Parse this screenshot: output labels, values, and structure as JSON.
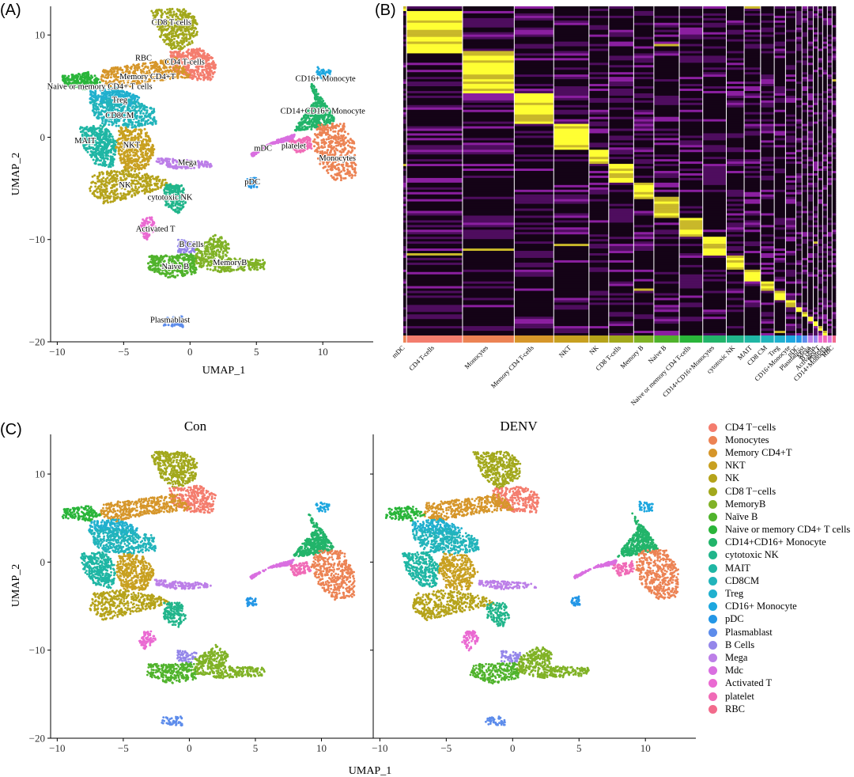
{
  "panels": {
    "a": "(A)",
    "b": "(B)",
    "c": "(C)"
  },
  "colors": {
    "CD4 T-cells": "#F47D6E",
    "Monocytes": "#EC8354",
    "Memory CD4+T": "#D6962A",
    "NKT": "#C8A020",
    "NK": "#B5A31A",
    "CD8 T-cells": "#A2A81C",
    "MemoryB": "#80B226",
    "Naive B": "#50B32C",
    "Naive or memory CD4+ T cells": "#2AB53A",
    "CD14+CD16+ Monocyte": "#22B46A",
    "cytotoxic NK": "#21B58B",
    "MAIT": "#1FB6A4",
    "CD8CM": "#22B4BB",
    "Treg": "#20B0CE",
    "CD16+ Monocyte": "#1DA7DF",
    "pDC": "#2396E6",
    "Plasmablast": "#5D8CEB",
    "B Cells": "#9486EA",
    "Mega": "#BC7FE8",
    "Mdc": "#D96FE0",
    "Activated T": "#EA6AD2",
    "platelet": "#F06BB7",
    "RBC": "#F26B8C"
  },
  "chart_data": [
    {
      "id": "A",
      "type": "scatter",
      "title": "",
      "xlabel": "UMAP_1",
      "ylabel": "UMAP_2",
      "xlim": [
        -10.5,
        13.8
      ],
      "ylim": [
        -20,
        12.8
      ],
      "xticks": [
        -10,
        -5,
        0,
        5,
        10
      ],
      "yticks": [
        -20,
        -10,
        0,
        10
      ],
      "xtick_labels": [
        "−10",
        "−5",
        "0",
        "5",
        "10"
      ],
      "ytick_labels": [
        "−20",
        "−10",
        "0",
        "10"
      ],
      "cluster_labels": [
        {
          "text": "CD8 T-cells",
          "x": -1.4,
          "y": 11.0
        },
        {
          "text": "RBC",
          "x": -3.5,
          "y": 7.5
        },
        {
          "text": "CD4 T-cells",
          "x": -0.4,
          "y": 7.1
        },
        {
          "text": "Memory CD4+T",
          "x": -3.2,
          "y": 5.7
        },
        {
          "text": "Naive or memory CD4+ T cells",
          "x": -6.8,
          "y": 4.7
        },
        {
          "text": "Treg",
          "x": -5.3,
          "y": 3.4
        },
        {
          "text": "CD8CM",
          "x": -5.3,
          "y": 1.9
        },
        {
          "text": "MAIT",
          "x": -7.9,
          "y": -0.6
        },
        {
          "text": "NKT",
          "x": -4.4,
          "y": -1.0
        },
        {
          "text": "Mega",
          "x": -0.2,
          "y": -2.7
        },
        {
          "text": "NK",
          "x": -4.9,
          "y": -4.9
        },
        {
          "text": "cytotoxic NK",
          "x": -1.5,
          "y": -6.1
        },
        {
          "text": "Activated T",
          "x": -2.6,
          "y": -9.2
        },
        {
          "text": "B Cells",
          "x": 0.1,
          "y": -10.7
        },
        {
          "text": "MemoryB",
          "x": 3.0,
          "y": -12.5
        },
        {
          "text": "Naive B",
          "x": -1.1,
          "y": -12.9
        },
        {
          "text": "Plasmablast",
          "x": -1.5,
          "y": -18.1
        },
        {
          "text": "CD16+ Monocyte",
          "x": 10.2,
          "y": 5.5
        },
        {
          "text": "CD14+CD16+ Monocyte",
          "x": 10.0,
          "y": 2.3
        },
        {
          "text": "mDC",
          "x": 5.5,
          "y": -1.3
        },
        {
          "text": "platelet",
          "x": 7.8,
          "y": -1.1
        },
        {
          "text": "Monocytes",
          "x": 11.1,
          "y": -2.3
        },
        {
          "text": "pDC",
          "x": 4.7,
          "y": -4.6
        }
      ],
      "clusters": [
        {
          "name": "CD8 T-cells",
          "shape": [
            [
              -3.0,
              12.5
            ],
            [
              -0.5,
              12.6
            ],
            [
              0.6,
              11.5
            ],
            [
              0.5,
              9.5
            ],
            [
              -1.0,
              8.2
            ],
            [
              -2.2,
              9.6
            ]
          ]
        },
        {
          "name": "CD4 T-cells",
          "shape": [
            [
              -1.5,
              8.4
            ],
            [
              0.8,
              8.7
            ],
            [
              2.0,
              7.6
            ],
            [
              1.8,
              5.6
            ],
            [
              0.3,
              5.6
            ],
            [
              -1.3,
              6.5
            ]
          ]
        },
        {
          "name": "Memory CD4+T",
          "shape": [
            [
              -6.5,
              6.7
            ],
            [
              -2.5,
              7.4
            ],
            [
              -1.0,
              7.8
            ],
            [
              0.2,
              5.9
            ],
            [
              -3.2,
              5.4
            ],
            [
              -5.5,
              4.6
            ],
            [
              -6.8,
              5.3
            ]
          ]
        },
        {
          "name": "Naive or memory CD4+ T cells",
          "shape": [
            [
              -9.6,
              6.0
            ],
            [
              -7.5,
              6.4
            ],
            [
              -6.6,
              5.4
            ],
            [
              -7.6,
              4.6
            ],
            [
              -9.6,
              5.0
            ]
          ]
        },
        {
          "name": "Treg",
          "shape": [
            [
              -7.5,
              4.6
            ],
            [
              -5.5,
              4.9
            ],
            [
              -3.8,
              3.9
            ],
            [
              -4.2,
              3.0
            ],
            [
              -6.2,
              3.2
            ],
            [
              -7.6,
              3.6
            ]
          ]
        },
        {
          "name": "CD8CM",
          "shape": [
            [
              -7.6,
              3.6
            ],
            [
              -5.0,
              3.8
            ],
            [
              -2.7,
              3.0
            ],
            [
              -2.5,
              1.3
            ],
            [
              -4.5,
              0.9
            ],
            [
              -6.5,
              1.2
            ],
            [
              -7.3,
              2.2
            ]
          ]
        },
        {
          "name": "MAIT",
          "shape": [
            [
              -8.3,
              1.0
            ],
            [
              -6.4,
              1.2
            ],
            [
              -5.5,
              -0.5
            ],
            [
              -5.8,
              -3.0
            ],
            [
              -7.2,
              -2.6
            ],
            [
              -8.0,
              -1.0
            ]
          ]
        },
        {
          "name": "NKT",
          "shape": [
            [
              -5.3,
              1.0
            ],
            [
              -3.4,
              0.8
            ],
            [
              -2.6,
              -1.2
            ],
            [
              -3.3,
              -3.2
            ],
            [
              -5.0,
              -3.1
            ],
            [
              -5.6,
              -1.1
            ]
          ]
        },
        {
          "name": "NK",
          "shape": [
            [
              -7.3,
              -3.5
            ],
            [
              -4.8,
              -3.1
            ],
            [
              -2.1,
              -3.9
            ],
            [
              -1.3,
              -4.8
            ],
            [
              -3.4,
              -5.5
            ],
            [
              -6.5,
              -6.6
            ],
            [
              -7.6,
              -5.3
            ]
          ]
        },
        {
          "name": "cytotoxic NK",
          "shape": [
            [
              -2.0,
              -4.6
            ],
            [
              -0.6,
              -4.6
            ],
            [
              -0.2,
              -6.2
            ],
            [
              -0.8,
              -7.5
            ],
            [
              -1.9,
              -6.6
            ]
          ]
        },
        {
          "name": "Mega",
          "shape": [
            [
              -2.6,
              -2.0
            ],
            [
              1.4,
              -2.4
            ],
            [
              1.8,
              -2.9
            ],
            [
              -1.0,
              -3.1
            ],
            [
              -2.5,
              -2.6
            ]
          ]
        },
        {
          "name": "Activated T",
          "shape": [
            [
              -3.6,
              -7.9
            ],
            [
              -2.9,
              -7.8
            ],
            [
              -2.5,
              -8.8
            ],
            [
              -3.3,
              -10.1
            ],
            [
              -3.8,
              -9.1
            ]
          ]
        },
        {
          "name": "B Cells",
          "shape": [
            [
              -0.9,
              -10.0
            ],
            [
              0.6,
              -10.3
            ],
            [
              0.4,
              -11.4
            ],
            [
              -0.9,
              -11.3
            ]
          ]
        },
        {
          "name": "MemoryB",
          "shape": [
            [
              0.4,
              -11.0
            ],
            [
              2.0,
              -9.4
            ],
            [
              3.0,
              -10.4
            ],
            [
              2.8,
              -11.8
            ],
            [
              5.8,
              -12.0
            ],
            [
              5.6,
              -12.9
            ],
            [
              2.3,
              -13.2
            ],
            [
              0.3,
              -12.6
            ]
          ]
        },
        {
          "name": "Naive B",
          "shape": [
            [
              -3.1,
              -11.6
            ],
            [
              0.4,
              -11.4
            ],
            [
              0.5,
              -13.3
            ],
            [
              -1.5,
              -13.8
            ],
            [
              -3.2,
              -12.9
            ]
          ]
        },
        {
          "name": "Plasmablast",
          "shape": [
            [
              -2.0,
              -17.6
            ],
            [
              -0.6,
              -17.5
            ],
            [
              -0.5,
              -18.6
            ],
            [
              -2.1,
              -18.4
            ]
          ]
        },
        {
          "name": "CD16+ Monocyte",
          "shape": [
            [
              9.5,
              6.9
            ],
            [
              10.6,
              6.6
            ],
            [
              10.5,
              5.7
            ],
            [
              9.6,
              5.8
            ]
          ]
        },
        {
          "name": "CD14+CD16+ Monocyte",
          "shape": [
            [
              9.0,
              5.6
            ],
            [
              10.3,
              3.2
            ],
            [
              11.0,
              1.5
            ],
            [
              9.3,
              0.8
            ],
            [
              7.8,
              0.6
            ],
            [
              8.6,
              2.2
            ],
            [
              9.4,
              3.6
            ]
          ]
        },
        {
          "name": "Monocytes",
          "shape": [
            [
              9.6,
              1.3
            ],
            [
              11.6,
              1.4
            ],
            [
              12.5,
              -0.8
            ],
            [
              12.5,
              -3.9
            ],
            [
              11.0,
              -4.3
            ],
            [
              9.8,
              -2.7
            ],
            [
              9.2,
              -0.6
            ]
          ]
        },
        {
          "name": "Mdc",
          "shape": [
            [
              4.6,
              -1.6
            ],
            [
              6.5,
              -0.3
            ],
            [
              7.9,
              0.3
            ],
            [
              7.7,
              -0.3
            ],
            [
              6.0,
              -0.7
            ],
            [
              4.7,
              -1.9
            ]
          ]
        },
        {
          "name": "platelet",
          "shape": [
            [
              7.4,
              -0.4
            ],
            [
              9.0,
              0.1
            ],
            [
              9.2,
              -1.1
            ],
            [
              8.0,
              -1.6
            ]
          ]
        },
        {
          "name": "pDC",
          "shape": [
            [
              4.3,
              -4.1
            ],
            [
              5.0,
              -3.9
            ],
            [
              5.1,
              -4.9
            ],
            [
              4.4,
              -5.0
            ]
          ]
        }
      ]
    },
    {
      "id": "B",
      "type": "heatmap",
      "title": "",
      "colormap": [
        "#000000",
        "#8B1FA0",
        "#FFFF33"
      ],
      "columns": [
        {
          "name": "mDC",
          "width": 0.7
        },
        {
          "name": "CD4 T-cells",
          "width": 11.9
        },
        {
          "name": "Monocytes",
          "width": 11.0
        },
        {
          "name": "Memory CD4 T-cells",
          "width": 8.4
        },
        {
          "name": "NKT",
          "width": 7.5
        },
        {
          "name": "NK",
          "width": 4.2
        },
        {
          "name": "CD8 T-cells",
          "width": 5.3
        },
        {
          "name": "Memory B",
          "width": 4.3
        },
        {
          "name": "Naive B",
          "width": 5.4
        },
        {
          "name": "Naive or memory CD4 T-cells",
          "width": 5.0
        },
        {
          "name": "CD14+CD16+Monocytes",
          "width": 5.0
        },
        {
          "name": "cytotoxic NK",
          "width": 3.8
        },
        {
          "name": "MAIT",
          "width": 3.5
        },
        {
          "name": "CD8 CM",
          "width": 2.9
        },
        {
          "name": "Treg",
          "width": 2.4
        },
        {
          "name": "CD16+Monocyte",
          "width": 2.2
        },
        {
          "name": "pDC",
          "width": 1.3
        },
        {
          "name": "Plasmablast",
          "width": 1.2
        },
        {
          "name": "Mega",
          "width": 1.2
        },
        {
          "name": "B cells",
          "width": 1.0
        },
        {
          "name": "Activated T",
          "width": 1.0
        },
        {
          "name": "Platelet",
          "width": 1.0
        },
        {
          "name": "CD14+Monocyte",
          "width": 1.0
        },
        {
          "name": "RBC",
          "width": 0.8
        }
      ],
      "bar_colors": [
        "#EC8354",
        "#F47D6E",
        "#EC8354",
        "#D6962A",
        "#C8A020",
        "#B5A31A",
        "#A2A81C",
        "#80B226",
        "#50B32C",
        "#2AB53A",
        "#22B46A",
        "#21B58B",
        "#1FB6A4",
        "#22B4BB",
        "#20B0CE",
        "#1DA7DF",
        "#2396E6",
        "#5D8CEB",
        "#BC7FE8",
        "#9486EA",
        "#EA6AD2",
        "#F06BB7",
        "#D96FE0",
        "#F26B8C"
      ]
    },
    {
      "id": "C",
      "type": "scatter",
      "facets": [
        "Con",
        "DENV"
      ],
      "xlabel": "UMAP_1",
      "ylabel": "UMAP_2",
      "xlim": [
        -10.5,
        13.8
      ],
      "ylim": [
        -20,
        14.5
      ],
      "xticks": [
        -10,
        -5,
        0,
        5,
        10
      ],
      "yticks": [
        -20,
        -10,
        0,
        10
      ],
      "xtick_labels": [
        "−10",
        "−5",
        "0",
        "5",
        "10"
      ],
      "ytick_labels": [
        "−20",
        "−10",
        "0",
        "10"
      ],
      "legend_position": "right",
      "legend": [
        "CD4 T−cells",
        "Monocytes",
        "Memory CD4+T",
        "NKT",
        "NK",
        "CD8 T−cells",
        "MemoryB",
        "Naïve B",
        "Naive or memory CD4+ T cells",
        "CD14+CD16+ Monocyte",
        "cytotoxic NK",
        "MAIT",
        "CD8CM",
        "Treg",
        "CD16+ Monocyte",
        "pDC",
        "Plasmablast",
        "B Cells",
        "Mega",
        "Mdc",
        "Activated T",
        "platelet",
        "RBC"
      ],
      "legend_keys": [
        "CD4 T-cells",
        "Monocytes",
        "Memory CD4+T",
        "NKT",
        "NK",
        "CD8 T-cells",
        "MemoryB",
        "Naive B",
        "Naive or memory CD4+ T cells",
        "CD14+CD16+ Monocyte",
        "cytotoxic NK",
        "MAIT",
        "CD8CM",
        "Treg",
        "CD16+ Monocyte",
        "pDC",
        "Plasmablast",
        "B Cells",
        "Mega",
        "Mdc",
        "Activated T",
        "platelet",
        "RBC"
      ]
    }
  ]
}
